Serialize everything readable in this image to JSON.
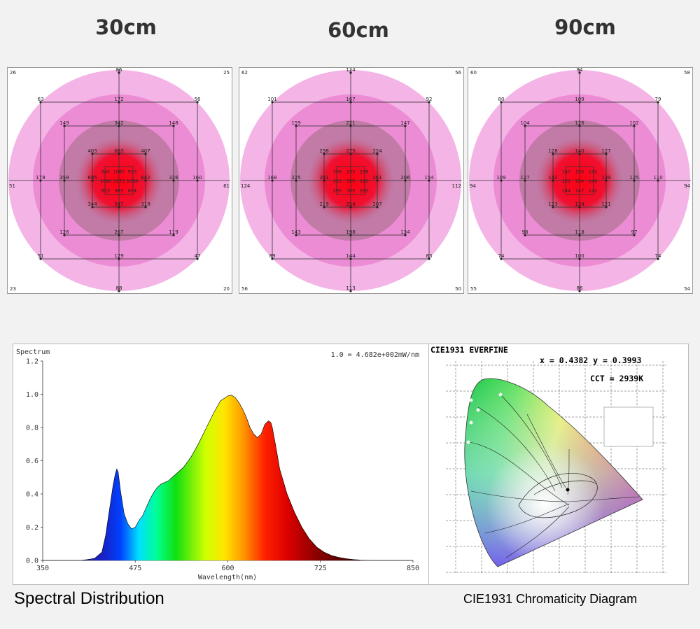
{
  "ppfd_maps": [
    {
      "distance": "30cm",
      "corners": {
        "tl": "26",
        "tr": "25",
        "bl": "23",
        "br": "20"
      },
      "edges": {
        "top": "86",
        "bottom": "88",
        "left": "51",
        "right": "61"
      },
      "ring3": {
        "tl": "63",
        "top": "172",
        "tr": "56",
        "left": "178",
        "right": "160",
        "bl": "51",
        "bottom": "129",
        "br": "47"
      },
      "ring2": {
        "tl": "149",
        "top": "342",
        "tr": "148",
        "left": "358",
        "right": "326",
        "bl": "126",
        "bottom": "267",
        "br": "119"
      },
      "ring1": {
        "tl": "403",
        "top": "663",
        "tr": "407",
        "left": "695",
        "right": "642",
        "bl": "344",
        "bottom": "547",
        "br": "319"
      },
      "core": [
        [
          "945",
          "1087",
          "933"
        ],
        [
          "1080",
          "1273",
          "1050"
        ],
        [
          "853",
          "963",
          "804"
        ]
      ]
    },
    {
      "distance": "60cm",
      "corners": {
        "tl": "62",
        "tr": "56",
        "bl": "56",
        "br": "50"
      },
      "edges": {
        "top": "124",
        "bottom": "113",
        "left": "124",
        "right": "112"
      },
      "ring3": {
        "tl": "101",
        "top": "167",
        "tr": "92",
        "left": "168",
        "right": "154",
        "bl": "89",
        "bottom": "144",
        "br": "83"
      },
      "ring2": {
        "tl": "159",
        "top": "221",
        "tr": "147",
        "left": "225",
        "right": "206",
        "bl": "143",
        "bottom": "198",
        "br": "134"
      },
      "ring1": {
        "tl": "238",
        "top": "275",
        "tr": "224",
        "left": "281",
        "right": "261",
        "bl": "219",
        "bottom": "254",
        "br": "207"
      },
      "core": [
        [
          "309",
          "333",
          "298"
        ],
        [
          "321",
          "355",
          "310"
        ],
        [
          "295",
          "305",
          "285"
        ]
      ]
    },
    {
      "distance": "90cm",
      "corners": {
        "tl": "60",
        "tr": "58",
        "bl": "55",
        "br": "54"
      },
      "edges": {
        "top": "94",
        "bottom": "86",
        "left": "94",
        "right": "94"
      },
      "ring3": {
        "tl": "80",
        "top": "109",
        "tr": "79",
        "left": "109",
        "right": "110",
        "bl": "74",
        "bottom": "100",
        "br": "74"
      },
      "ring2": {
        "tl": "104",
        "top": "126",
        "tr": "102",
        "left": "127",
        "right": "125",
        "bl": "98",
        "bottom": "118",
        "br": "97"
      },
      "ring1": {
        "tl": "128",
        "top": "140",
        "tr": "127",
        "left": "142",
        "right": "139",
        "bl": "123",
        "bottom": "134",
        "br": "121"
      },
      "core": [
        [
          "147",
          "150",
          "145"
        ],
        [
          "151",
          "154",
          "149"
        ],
        [
          "144",
          "147",
          "142"
        ]
      ]
    }
  ],
  "chart_data": {
    "type": "area",
    "title": "Spectrum",
    "subtitle": "1.0 = 4.682e+002mW/nm",
    "xlabel": "Wavelength(nm)",
    "ylabel": "",
    "xlim": [
      350,
      850
    ],
    "ylim": [
      0,
      1.2
    ],
    "x_ticks": [
      350,
      475,
      600,
      725,
      850
    ],
    "y_ticks": [
      "0.0",
      "0.2",
      "0.4",
      "0.6",
      "0.8",
      "1.0",
      "1.2"
    ],
    "x": [
      350,
      400,
      410,
      420,
      430,
      435,
      440,
      445,
      448,
      450,
      452,
      455,
      460,
      465,
      470,
      475,
      480,
      485,
      490,
      495,
      500,
      505,
      510,
      515,
      520,
      530,
      540,
      550,
      560,
      570,
      580,
      590,
      600,
      605,
      610,
      615,
      620,
      625,
      630,
      635,
      640,
      645,
      650,
      655,
      658,
      660,
      665,
      670,
      680,
      690,
      700,
      710,
      720,
      730,
      740,
      750,
      760,
      770,
      780,
      800,
      850
    ],
    "y": [
      0.0,
      0.0,
      0.005,
      0.012,
      0.05,
      0.15,
      0.3,
      0.45,
      0.52,
      0.55,
      0.53,
      0.42,
      0.28,
      0.22,
      0.19,
      0.2,
      0.24,
      0.27,
      0.32,
      0.37,
      0.41,
      0.44,
      0.46,
      0.47,
      0.48,
      0.52,
      0.56,
      0.62,
      0.7,
      0.79,
      0.88,
      0.96,
      0.99,
      0.995,
      0.98,
      0.95,
      0.91,
      0.86,
      0.8,
      0.76,
      0.74,
      0.76,
      0.82,
      0.84,
      0.83,
      0.8,
      0.68,
      0.55,
      0.4,
      0.29,
      0.2,
      0.13,
      0.08,
      0.05,
      0.03,
      0.018,
      0.01,
      0.005,
      0.002,
      0.0,
      0.0
    ]
  },
  "cie": {
    "title": "CIE1931  EVERFINE",
    "coords": "x = 0.4382 y = 0.3993",
    "cct": "CCT = 2939K"
  },
  "captions": {
    "spectral": "Spectral Distribution",
    "cie": "CIE1931 Chromaticity Diagram"
  }
}
